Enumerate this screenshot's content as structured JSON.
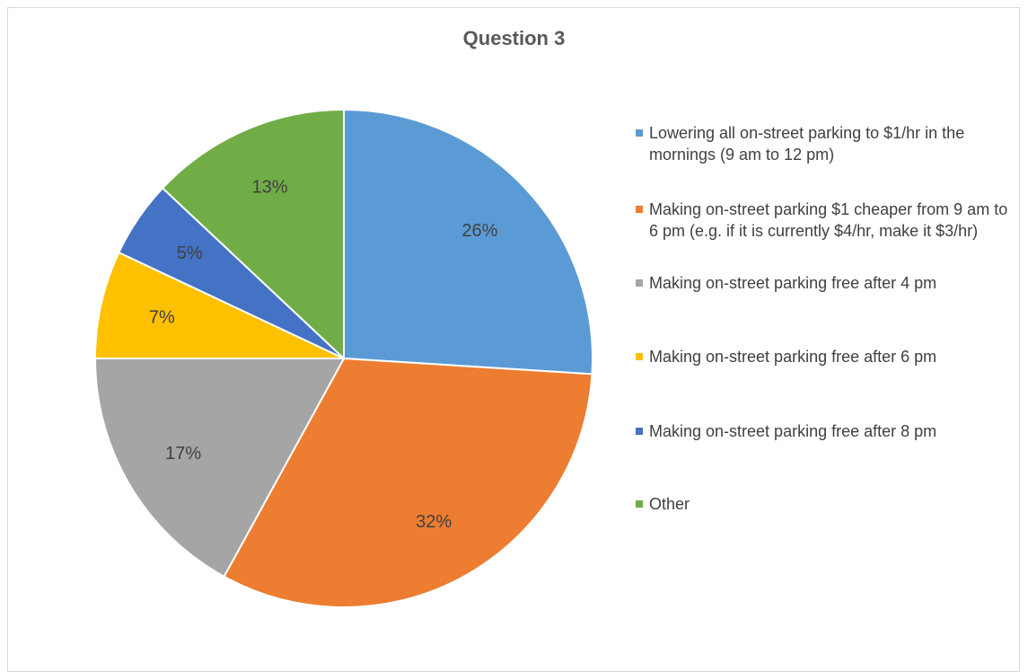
{
  "chart_data": {
    "type": "pie",
    "title": "Question 3",
    "categories": [
      "Lowering all on-street parking to $1/hr in the mornings (9 am to 12 pm)",
      "Making on-street parking $1 cheaper from 9 am to 6 pm (e.g. if it is currently $4/hr, make it $3/hr)",
      "Making on-street parking free after 4 pm",
      "Making on-street parking free after 6 pm",
      "Making on-street parking free after 8 pm",
      "Other"
    ],
    "values": [
      26,
      32,
      17,
      7,
      5,
      13
    ],
    "data_labels": [
      "26%",
      "32%",
      "17%",
      "7%",
      "5%",
      "13%"
    ],
    "colors": [
      "#5B9BD5",
      "#ED7D31",
      "#A5A5A5",
      "#FFC000",
      "#4472C4",
      "#70AD47"
    ],
    "legend_position": "right"
  }
}
